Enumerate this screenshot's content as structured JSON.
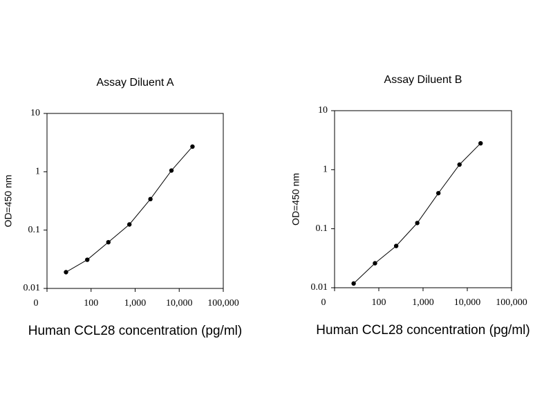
{
  "chart_data": [
    {
      "type": "line",
      "title": "Assay Diluent A",
      "x_label": "Human CCL28 concentration (pg/ml)",
      "y_label": "OD=450 nm",
      "x": [
        27,
        82,
        247,
        741,
        2222,
        6667,
        20000
      ],
      "values": [
        0.019,
        0.031,
        0.062,
        0.125,
        0.34,
        1.05,
        2.7
      ],
      "color": "#000000",
      "xlog": true,
      "ylog": true,
      "xlim": [
        10,
        100000
      ],
      "xticks": [
        {
          "value": 10,
          "label": "0"
        },
        100,
        {
          "value": 1000,
          "label": "1,000"
        },
        {
          "value": 10000,
          "label": "10,000"
        },
        {
          "value": 100000,
          "label": "100,000"
        }
      ],
      "ylim": [
        0.01,
        10
      ],
      "yticks": [
        0.01,
        0.1,
        1,
        10
      ]
    },
    {
      "type": "line",
      "title": "Assay Diluent B",
      "x_label": "Human CCL28 concentration (pg/ml)",
      "y_label": "OD=450 nm",
      "x": [
        27,
        82,
        247,
        741,
        2222,
        6667,
        20000
      ],
      "values": [
        0.0118,
        0.026,
        0.051,
        0.125,
        0.4,
        1.22,
        2.8
      ],
      "color": "#000000",
      "xlog": true,
      "ylog": true,
      "xlim": [
        10,
        100000
      ],
      "xticks": [
        {
          "value": 10,
          "label": "0"
        },
        100,
        {
          "value": 1000,
          "label": "1,000"
        },
        {
          "value": 10000,
          "label": "10,000"
        },
        {
          "value": 100000,
          "label": "100,000"
        }
      ],
      "ylim": [
        0.01,
        10
      ],
      "yticks": [
        0.01,
        0.1,
        1,
        10
      ]
    }
  ]
}
